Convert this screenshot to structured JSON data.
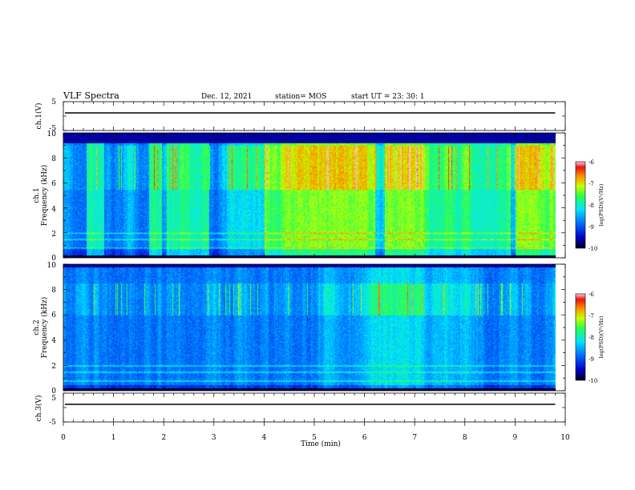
{
  "header": {
    "title": "VLF Spectra",
    "date": "Dec. 12, 2021",
    "station": "station= MOS",
    "start": "start  UT =  23: 30: 1"
  },
  "chart_data": [
    {
      "type": "line",
      "panel": "ch1-waveform",
      "ylabel": "ch.1(V)",
      "ylim": [
        -5,
        5
      ],
      "y_ticks": [
        "5",
        "-5"
      ],
      "series": [
        {
          "x": [
            0,
            9.8
          ],
          "y": [
            0,
            0
          ]
        }
      ]
    },
    {
      "type": "heatmap",
      "panel": "ch1-spectrogram",
      "ylabel_line1": "ch.1",
      "ylabel_line2": "Frequency (kHz)",
      "ylim": [
        0,
        10
      ],
      "y_ticks": [
        "0",
        "2",
        "4",
        "6",
        "8",
        "10"
      ],
      "data_x_range": [
        0,
        9.8
      ],
      "colorbar": {
        "label": "log(PSD)(V²/Hz)",
        "range": [
          -10,
          -6
        ],
        "ticks": [
          "-6",
          "-7",
          "-8",
          "-9",
          "-10"
        ]
      },
      "emission_band_khz": [
        0.8,
        9.2
      ],
      "intense_band_khz": [
        5.5,
        9.0
      ],
      "enhanced_intervals_min": [
        [
          0.45,
          0.8
        ],
        [
          1.7,
          1.95
        ],
        [
          2.05,
          2.9
        ],
        [
          4.0,
          6.2
        ],
        [
          6.4,
          8.9
        ],
        [
          9.0,
          9.8
        ]
      ]
    },
    {
      "type": "heatmap",
      "panel": "ch2-spectrogram",
      "ylabel_line1": "ch.2",
      "ylabel_line2": "Frequency (kHz)",
      "ylim": [
        0,
        10
      ],
      "y_ticks": [
        "0",
        "2",
        "4",
        "6",
        "8",
        "10"
      ],
      "data_x_range": [
        0,
        9.8
      ],
      "colorbar": {
        "label": "log(PSD)(V²/Hz)",
        "range": [
          -10,
          -6
        ],
        "ticks": [
          "-6",
          "-7",
          "-8",
          "-9",
          "-10"
        ]
      },
      "emission_band_khz": [
        0.5,
        9.8
      ],
      "intense_band_khz": [
        6.0,
        8.5
      ]
    },
    {
      "type": "line",
      "panel": "ch3-waveform",
      "ylabel": "ch.3(V)",
      "ylim": [
        -5,
        5
      ],
      "y_ticks": [
        "5",
        "-5"
      ],
      "xlabel": "Time  (min)",
      "xlim": [
        0,
        10
      ],
      "x_ticks": [
        "0",
        "1",
        "2",
        "3",
        "4",
        "5",
        "6",
        "7",
        "8",
        "9",
        "10"
      ],
      "series": [
        {
          "x": [
            0,
            9.8
          ],
          "y": [
            0,
            0
          ]
        }
      ]
    }
  ]
}
